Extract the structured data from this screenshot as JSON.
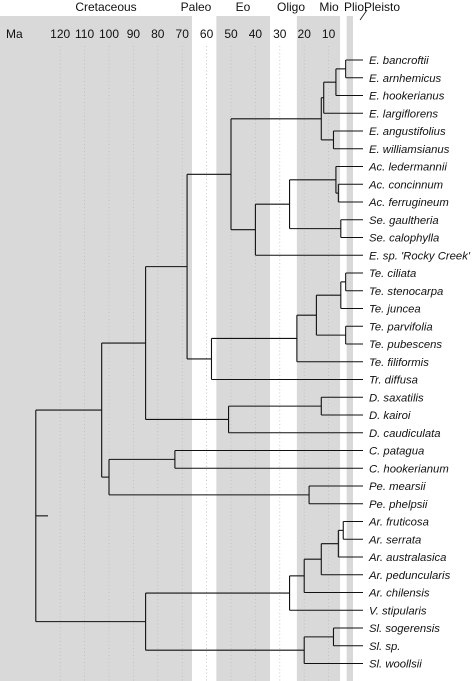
{
  "header": {
    "ma_label": "Ma",
    "periods": [
      {
        "key": "cretaceous",
        "label": "Cretaceous",
        "start": 145,
        "end": 66
      },
      {
        "key": "paleo",
        "label": "Paleo",
        "start": 66,
        "end": 56
      },
      {
        "key": "eo",
        "label": "Eo",
        "start": 56,
        "end": 34
      },
      {
        "key": "oligo",
        "label": "Oligo",
        "start": 34,
        "end": 23
      },
      {
        "key": "mio",
        "label": "Mio",
        "start": 23,
        "end": 5.3
      },
      {
        "key": "plio",
        "label": "Plio",
        "start": 5.3,
        "end": 2.6
      },
      {
        "key": "pleisto",
        "label": "Pleisto",
        "start": 2.6,
        "end": 0
      }
    ],
    "ticks": [
      "120",
      "110",
      "100",
      "90",
      "80",
      "70",
      "60",
      "50",
      "40",
      "30",
      "20",
      "10"
    ]
  },
  "taxa": [
    {
      "name": "E. bancroftii",
      "italic": true
    },
    {
      "name": "E. arnhemicus",
      "italic": true
    },
    {
      "name": "E. hookerianus",
      "italic": true
    },
    {
      "name": "E. largiflorens",
      "italic": true
    },
    {
      "name": "E. angustifolius",
      "italic": true
    },
    {
      "name": "E. williamsianus",
      "italic": true
    },
    {
      "name": "Ac. ledermannii",
      "italic": true
    },
    {
      "name": "Ac. concinnum",
      "italic": true
    },
    {
      "name": "Ac. ferrugineum",
      "italic": true
    },
    {
      "name": "Se. gaultheria",
      "italic": true
    },
    {
      "name": "Se. calophylla",
      "italic": true
    },
    {
      "name": "E. sp. 'Rocky Creek'",
      "italic": true
    },
    {
      "name": "Te. ciliata",
      "italic": true
    },
    {
      "name": "Te. stenocarpa",
      "italic": true
    },
    {
      "name": "Te. juncea",
      "italic": true
    },
    {
      "name": "Te. parvifolia",
      "italic": true
    },
    {
      "name": "Te. pubescens",
      "italic": true
    },
    {
      "name": "Te. filiformis",
      "italic": true
    },
    {
      "name": "Tr. diffusa",
      "italic": true
    },
    {
      "name": "D. saxatilis",
      "italic": true
    },
    {
      "name": "D. kairoi",
      "italic": true
    },
    {
      "name": "D. caudiculata",
      "italic": true
    },
    {
      "name": "C. patagua",
      "italic": true
    },
    {
      "name": "C. hookerianum",
      "italic": true
    },
    {
      "name": "Pe. mearsii",
      "italic": true
    },
    {
      "name": "Pe. phelpsii",
      "italic": true
    },
    {
      "name": "Ar. fruticosa",
      "italic": true
    },
    {
      "name": "Ar. serrata",
      "italic": true
    },
    {
      "name": "Ar. australasica",
      "italic": true
    },
    {
      "name": "Ar. peduncularis",
      "italic": true
    },
    {
      "name": "Ar. chilensis",
      "italic": true
    },
    {
      "name": "V. stipularis",
      "italic": true
    },
    {
      "name": "Sl. sogerensis",
      "italic": true
    },
    {
      "name": "Sl. sp.",
      "italic": true
    },
    {
      "name": "Sl. woollsii",
      "italic": true
    }
  ],
  "tree": {
    "age": 130,
    "children": [
      {
        "age": 103,
        "children": [
          {
            "age": 85,
            "children": [
              {
                "age": 68,
                "children": [
                  {
                    "age": 50,
                    "children": [
                      {
                        "age": 13,
                        "children": [
                          {
                            "age": 12,
                            "children": [
                              {
                                "age": 7,
                                "children": [
                                  {
                                    "age": 3,
                                    "children": [
                                      {
                                        "taxon": 0
                                      },
                                      {
                                        "taxon": 1
                                      }
                                    ]
                                  },
                                  {
                                    "taxon": 2
                                  }
                                ]
                              },
                              {
                                "taxon": 3
                              }
                            ]
                          },
                          {
                            "age": 8,
                            "children": [
                              {
                                "taxon": 4
                              },
                              {
                                "taxon": 5
                              }
                            ]
                          }
                        ]
                      },
                      {
                        "age": 40,
                        "children": [
                          {
                            "age": 26,
                            "children": [
                              {
                                "age": 7,
                                "children": [
                                  {
                                    "taxon": 6
                                  },
                                  {
                                    "age": 6,
                                    "children": [
                                      {
                                        "taxon": 7
                                      },
                                      {
                                        "taxon": 8
                                      }
                                    ]
                                  }
                                ]
                              },
                              {
                                "age": 5,
                                "children": [
                                  {
                                    "taxon": 9
                                  },
                                  {
                                    "taxon": 10
                                  }
                                ]
                              }
                            ]
                          },
                          {
                            "taxon": 11
                          }
                        ]
                      }
                    ]
                  },
                  {
                    "age": 58,
                    "children": [
                      {
                        "age": 23,
                        "children": [
                          {
                            "age": 15,
                            "children": [
                              {
                                "age": 5,
                                "children": [
                                  {
                                    "age": 3,
                                    "children": [
                                      {
                                        "taxon": 12
                                      },
                                      {
                                        "taxon": 13
                                      }
                                    ]
                                  },
                                  {
                                    "taxon": 14
                                  }
                                ]
                              },
                              {
                                "age": 3,
                                "children": [
                                  {
                                    "taxon": 15
                                  },
                                  {
                                    "taxon": 16
                                  }
                                ]
                              }
                            ]
                          },
                          {
                            "taxon": 17
                          }
                        ]
                      },
                      {
                        "taxon": 18
                      }
                    ]
                  }
                ]
              },
              {
                "age": 51,
                "children": [
                  {
                    "age": 13,
                    "children": [
                      {
                        "taxon": 19
                      },
                      {
                        "taxon": 20
                      }
                    ]
                  },
                  {
                    "taxon": 21
                  }
                ]
              }
            ]
          },
          {
            "age": 100,
            "children": [
              {
                "age": 73,
                "children": [
                  {
                    "taxon": 22
                  },
                  {
                    "taxon": 23
                  }
                ]
              },
              {
                "age": 18,
                "children": [
                  {
                    "taxon": 24
                  },
                  {
                    "taxon": 25
                  }
                ]
              }
            ]
          }
        ]
      },
      {
        "age": 85,
        "children": [
          {
            "age": 26,
            "children": [
              {
                "age": 20,
                "children": [
                  {
                    "age": 13,
                    "children": [
                      {
                        "age": 6,
                        "children": [
                          {
                            "age": 4,
                            "children": [
                              {
                                "taxon": 26
                              },
                              {
                                "taxon": 27
                              }
                            ]
                          },
                          {
                            "taxon": 28
                          }
                        ]
                      },
                      {
                        "taxon": 29
                      }
                    ]
                  },
                  {
                    "taxon": 30
                  }
                ]
              },
              {
                "taxon": 31
              }
            ]
          },
          {
            "age": 20,
            "children": [
              {
                "age": 8,
                "children": [
                  {
                    "taxon": 32
                  },
                  {
                    "taxon": 33
                  }
                ]
              },
              {
                "taxon": 34
              }
            ]
          }
        ]
      }
    ]
  }
}
